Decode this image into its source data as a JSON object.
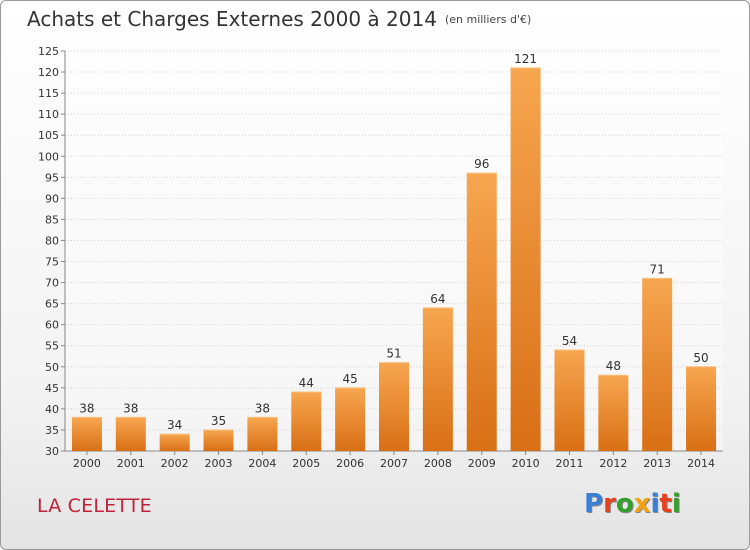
{
  "header": {
    "title": "Achats et Charges Externes 2000 à 2014",
    "unit": "(en milliers d'€)"
  },
  "footer": {
    "commune": "LA CELETTE",
    "logo": "Proxiti"
  },
  "colors": {
    "bar_light": "#f7a650",
    "bar_dark": "#d86f14",
    "commune": "#c0223b",
    "logo_letters": [
      "#3a7fd1",
      "#e8411f",
      "#33a02c",
      "#f2a30f",
      "#3a7fd1",
      "#e8411f",
      "#33a02c"
    ]
  },
  "chart_data": {
    "type": "bar",
    "title": "Achats et Charges Externes 2000 à 2014",
    "subtitle": "(en milliers d'€)",
    "categories": [
      "2000",
      "2001",
      "2002",
      "2003",
      "2004",
      "2005",
      "2006",
      "2007",
      "2008",
      "2009",
      "2010",
      "2011",
      "2012",
      "2013",
      "2014"
    ],
    "values": [
      38,
      38,
      34,
      35,
      38,
      44,
      45,
      51,
      64,
      96,
      121,
      54,
      48,
      71,
      50
    ],
    "ylim": [
      30,
      125
    ],
    "yticks": [
      30,
      35,
      40,
      45,
      50,
      55,
      60,
      65,
      70,
      75,
      80,
      85,
      90,
      95,
      100,
      105,
      110,
      115,
      120,
      125
    ],
    "grid": true,
    "data_labels": true
  }
}
